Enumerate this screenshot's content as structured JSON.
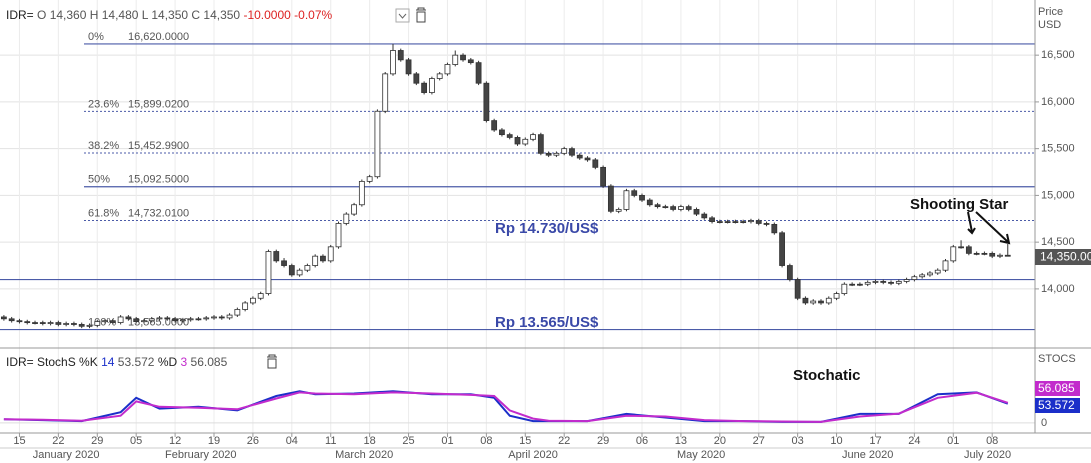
{
  "chart_data": [
    {
      "type": "candlestick",
      "header": {
        "symbol": "IDR=",
        "open": "O 14,360",
        "high": "H 14,480",
        "low": "L 14,350",
        "close": "C 14,350",
        "change": "-10.0000",
        "change_pct": "-0.07%"
      },
      "ylabel": "Price",
      "yunit": "USD",
      "last_price_label": "14,350.00",
      "ylim": [
        13400,
        17090
      ],
      "yticks": [
        {
          "value": 14000,
          "label": "14,000"
        },
        {
          "value": 14500,
          "label": "14,500"
        },
        {
          "value": 15000,
          "label": "15,000"
        },
        {
          "value": 15500,
          "label": "15,500"
        },
        {
          "value": 16000,
          "label": "16,000"
        },
        {
          "value": 16500,
          "label": "16,500"
        }
      ],
      "xlim": [
        -0.5,
        132.5
      ],
      "xticks": [
        {
          "value": 2,
          "label": "15"
        },
        {
          "value": 7,
          "label": "22"
        },
        {
          "value": 12,
          "label": "29"
        },
        {
          "value": 17,
          "label": "05"
        },
        {
          "value": 22,
          "label": "12"
        },
        {
          "value": 27,
          "label": "19"
        },
        {
          "value": 32,
          "label": "26"
        },
        {
          "value": 37,
          "label": "04"
        },
        {
          "value": 42,
          "label": "11"
        },
        {
          "value": 47,
          "label": "18"
        },
        {
          "value": 52,
          "label": "25"
        },
        {
          "value": 57,
          "label": "01"
        },
        {
          "value": 62,
          "label": "08"
        },
        {
          "value": 67,
          "label": "15"
        },
        {
          "value": 72,
          "label": "22"
        },
        {
          "value": 77,
          "label": "29"
        },
        {
          "value": 82,
          "label": "06"
        },
        {
          "value": 87,
          "label": "13"
        },
        {
          "value": 92,
          "label": "20"
        },
        {
          "value": 97,
          "label": "27"
        },
        {
          "value": 102,
          "label": "03"
        },
        {
          "value": 107,
          "label": "10"
        },
        {
          "value": 112,
          "label": "17"
        },
        {
          "value": 117,
          "label": "24"
        },
        {
          "value": 122,
          "label": "01"
        },
        {
          "value": 127,
          "label": "08"
        }
      ],
      "months": [
        {
          "value": 8,
          "label": "January 2020"
        },
        {
          "value": 25.3,
          "label": "February 2020"
        },
        {
          "value": 46.3,
          "label": "March 2020"
        },
        {
          "value": 68,
          "label": "April 2020"
        },
        {
          "value": 89.6,
          "label": "May 2020"
        },
        {
          "value": 111,
          "label": "June 2020"
        },
        {
          "value": 126.4,
          "label": "July 2020"
        }
      ],
      "grid": true,
      "up_color": "#ffffff",
      "down_color": "#444444",
      "level_color": "#4b5ba8",
      "fib_levels": [
        {
          "ratio": "0%",
          "value": 16620,
          "label": "16,620.0000",
          "dashed": false
        },
        {
          "ratio": "23.6%",
          "value": 15899.02,
          "label": "15,899.0200",
          "dashed": true
        },
        {
          "ratio": "38.2%",
          "value": 15452.99,
          "label": "15,452.9900",
          "dashed": true
        },
        {
          "ratio": "50%",
          "value": 15092.5,
          "label": "15,092.5000",
          "dashed": false
        },
        {
          "ratio": "61.8%",
          "value": 14732.01,
          "label": "14,732.0100",
          "dashed": true
        },
        {
          "ratio": "100%",
          "value": 13565,
          "label": "13,565.0000",
          "dashed": false
        }
      ],
      "support_lines": [
        14100
      ],
      "annotations": {
        "resistance": "Rp 14.730/US$",
        "support": "Rp 13.565/US$",
        "pattern": "Shooting Star"
      },
      "candles": [
        [
          13700,
          13720,
          13660,
          13680
        ],
        [
          13680,
          13700,
          13640,
          13660
        ],
        [
          13660,
          13680,
          13630,
          13650
        ],
        [
          13650,
          13670,
          13620,
          13640
        ],
        [
          13640,
          13660,
          13620,
          13640
        ],
        [
          13640,
          13660,
          13610,
          13630
        ],
        [
          13630,
          13660,
          13610,
          13640
        ],
        [
          13640,
          13660,
          13600,
          13620
        ],
        [
          13620,
          13650,
          13600,
          13630
        ],
        [
          13630,
          13650,
          13600,
          13620
        ],
        [
          13620,
          13640,
          13580,
          13600
        ],
        [
          13600,
          13630,
          13580,
          13610
        ],
        [
          13610,
          13670,
          13590,
          13650
        ],
        [
          13650,
          13680,
          13630,
          13660
        ],
        [
          13660,
          13680,
          13620,
          13640
        ],
        [
          13640,
          13720,
          13620,
          13700
        ],
        [
          13700,
          13720,
          13660,
          13680
        ],
        [
          13680,
          13700,
          13630,
          13650
        ],
        [
          13650,
          13680,
          13630,
          13660
        ],
        [
          13660,
          13700,
          13640,
          13680
        ],
        [
          13680,
          13710,
          13660,
          13690
        ],
        [
          13690,
          13710,
          13660,
          13680
        ],
        [
          13680,
          13700,
          13640,
          13660
        ],
        [
          13660,
          13690,
          13640,
          13670
        ],
        [
          13670,
          13700,
          13650,
          13680
        ],
        [
          13680,
          13700,
          13660,
          13680
        ],
        [
          13680,
          13710,
          13660,
          13690
        ],
        [
          13690,
          13720,
          13670,
          13700
        ],
        [
          13700,
          13720,
          13670,
          13690
        ],
        [
          13690,
          13740,
          13670,
          13720
        ],
        [
          13720,
          13800,
          13700,
          13780
        ],
        [
          13780,
          13870,
          13760,
          13850
        ],
        [
          13850,
          13920,
          13830,
          13900
        ],
        [
          13900,
          13970,
          13880,
          13950
        ],
        [
          13950,
          14420,
          13930,
          14400
        ],
        [
          14400,
          14420,
          14280,
          14300
        ],
        [
          14300,
          14330,
          14230,
          14250
        ],
        [
          14250,
          14270,
          14130,
          14150
        ],
        [
          14150,
          14220,
          14130,
          14200
        ],
        [
          14200,
          14270,
          14180,
          14250
        ],
        [
          14250,
          14370,
          14230,
          14350
        ],
        [
          14350,
          14370,
          14280,
          14300
        ],
        [
          14300,
          14470,
          14280,
          14450
        ],
        [
          14450,
          14720,
          14430,
          14700
        ],
        [
          14700,
          14820,
          14680,
          14800
        ],
        [
          14800,
          14920,
          14780,
          14900
        ],
        [
          14900,
          15170,
          14880,
          15150
        ],
        [
          15150,
          15220,
          15130,
          15200
        ],
        [
          15200,
          15920,
          15180,
          15900
        ],
        [
          15900,
          16320,
          15880,
          16300
        ],
        [
          16300,
          16620,
          16280,
          16550
        ],
        [
          16550,
          16570,
          16430,
          16450
        ],
        [
          16450,
          16470,
          16280,
          16300
        ],
        [
          16300,
          16320,
          16180,
          16200
        ],
        [
          16200,
          16220,
          16080,
          16100
        ],
        [
          16100,
          16270,
          16080,
          16250
        ],
        [
          16250,
          16320,
          16230,
          16300
        ],
        [
          16300,
          16420,
          16280,
          16400
        ],
        [
          16400,
          16550,
          16380,
          16500
        ],
        [
          16500,
          16520,
          16430,
          16450
        ],
        [
          16450,
          16470,
          16400,
          16420
        ],
        [
          16420,
          16440,
          16180,
          16200
        ],
        [
          16200,
          16220,
          15780,
          15800
        ],
        [
          15800,
          15820,
          15680,
          15700
        ],
        [
          15700,
          15720,
          15630,
          15650
        ],
        [
          15650,
          15670,
          15600,
          15620
        ],
        [
          15620,
          15640,
          15530,
          15550
        ],
        [
          15550,
          15620,
          15530,
          15600
        ],
        [
          15600,
          15670,
          15580,
          15650
        ],
        [
          15650,
          15670,
          15430,
          15450
        ],
        [
          15450,
          15470,
          15410,
          15430
        ],
        [
          15430,
          15470,
          15410,
          15450
        ],
        [
          15450,
          15520,
          15430,
          15500
        ],
        [
          15500,
          15520,
          15410,
          15430
        ],
        [
          15430,
          15450,
          15380,
          15400
        ],
        [
          15400,
          15420,
          15360,
          15380
        ],
        [
          15380,
          15400,
          15280,
          15300
        ],
        [
          15300,
          15320,
          15080,
          15100
        ],
        [
          15100,
          15120,
          14810,
          14830
        ],
        [
          14830,
          14870,
          14810,
          14850
        ],
        [
          14850,
          15070,
          14830,
          15050
        ],
        [
          15050,
          15070,
          14980,
          15000
        ],
        [
          15000,
          15020,
          14930,
          14950
        ],
        [
          14950,
          14970,
          14880,
          14900
        ],
        [
          14900,
          14920,
          14860,
          14880
        ],
        [
          14880,
          14900,
          14860,
          14880
        ],
        [
          14880,
          14900,
          14830,
          14850
        ],
        [
          14850,
          14900,
          14830,
          14880
        ],
        [
          14880,
          14900,
          14830,
          14850
        ],
        [
          14850,
          14870,
          14780,
          14800
        ],
        [
          14800,
          14820,
          14740,
          14760
        ],
        [
          14760,
          14780,
          14700,
          14720
        ],
        [
          14720,
          14740,
          14700,
          14720
        ],
        [
          14720,
          14740,
          14700,
          14720
        ],
        [
          14720,
          14740,
          14700,
          14720
        ],
        [
          14720,
          14740,
          14700,
          14720
        ],
        [
          14720,
          14750,
          14700,
          14730
        ],
        [
          14730,
          14750,
          14680,
          14700
        ],
        [
          14700,
          14720,
          14670,
          14690
        ],
        [
          14690,
          14710,
          14580,
          14600
        ],
        [
          14600,
          14620,
          14230,
          14250
        ],
        [
          14250,
          14270,
          14080,
          14100
        ],
        [
          14100,
          14120,
          13880,
          13900
        ],
        [
          13900,
          13920,
          13830,
          13850
        ],
        [
          13850,
          13890,
          13830,
          13870
        ],
        [
          13870,
          13890,
          13830,
          13850
        ],
        [
          13850,
          13920,
          13830,
          13900
        ],
        [
          13900,
          13970,
          13880,
          13950
        ],
        [
          13950,
          14070,
          13930,
          14050
        ],
        [
          14050,
          14070,
          14030,
          14050
        ],
        [
          14050,
          14070,
          14030,
          14050
        ],
        [
          14050,
          14090,
          14030,
          14070
        ],
        [
          14070,
          14100,
          14050,
          14080
        ],
        [
          14080,
          14100,
          14050,
          14070
        ],
        [
          14070,
          14090,
          14040,
          14060
        ],
        [
          14060,
          14100,
          14040,
          14080
        ],
        [
          14080,
          14120,
          14060,
          14100
        ],
        [
          14100,
          14150,
          14080,
          14130
        ],
        [
          14130,
          14170,
          14110,
          14150
        ],
        [
          14150,
          14190,
          14130,
          14170
        ],
        [
          14170,
          14220,
          14150,
          14200
        ],
        [
          14200,
          14320,
          14180,
          14300
        ],
        [
          14300,
          14470,
          14280,
          14450
        ],
        [
          14450,
          14520,
          14430,
          14450
        ],
        [
          14450,
          14470,
          14360,
          14380
        ],
        [
          14380,
          14400,
          14360,
          14380
        ],
        [
          14380,
          14400,
          14360,
          14380
        ],
        [
          14380,
          14400,
          14330,
          14350
        ],
        [
          14350,
          14380,
          14330,
          14360
        ],
        [
          14360,
          14480,
          14350,
          14350
        ]
      ]
    },
    {
      "type": "line",
      "header": "IDR= StochS",
      "k_period": 14,
      "d_period": 3,
      "ylabel": "STOCS",
      "annotation": "Stochatic",
      "ylim": [
        -28,
        189
      ],
      "yticks": [
        0
      ],
      "xlim": [
        -0.5,
        132.5
      ],
      "x": [
        0,
        5,
        10,
        15,
        17,
        20,
        25,
        30,
        35,
        38,
        40,
        45,
        50,
        55,
        60,
        63,
        65,
        68,
        70,
        75,
        80,
        85,
        90,
        95,
        100,
        105,
        110,
        115,
        120,
        125,
        129
      ],
      "series": [
        {
          "name": "%K",
          "color": "#1b2fc9",
          "values": [
            10,
            8,
            5,
            30,
            70,
            40,
            45,
            35,
            75,
            88,
            80,
            82,
            88,
            80,
            80,
            70,
            20,
            5,
            5,
            5,
            25,
            15,
            5,
            5,
            3,
            3,
            25,
            25,
            80,
            85,
            53.572
          ]
        },
        {
          "name": "%D",
          "color": "#c22bcc",
          "values": [
            10,
            9,
            6,
            20,
            60,
            45,
            42,
            38,
            68,
            85,
            82,
            80,
            85,
            82,
            78,
            75,
            35,
            12,
            6,
            5,
            20,
            18,
            8,
            5,
            4,
            3,
            18,
            26,
            70,
            84,
            56.085
          ]
        }
      ]
    }
  ]
}
